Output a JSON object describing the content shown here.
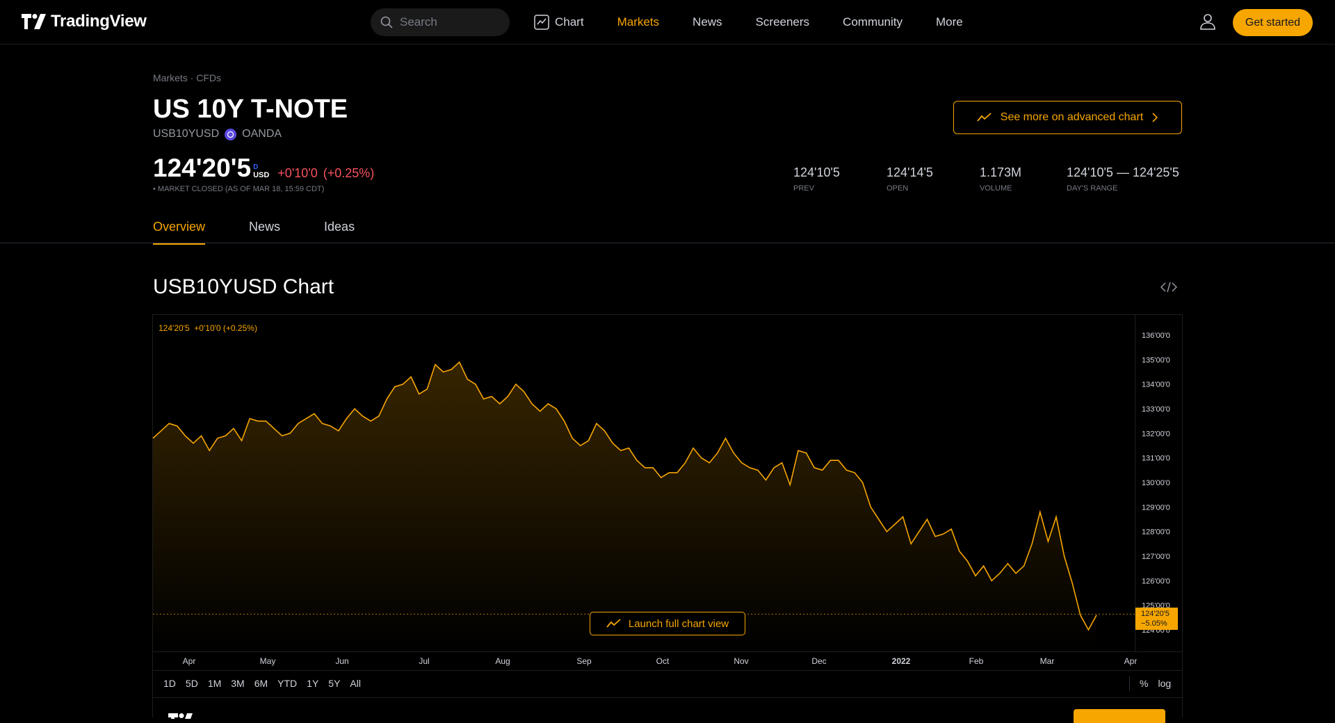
{
  "topbar": {
    "logo_text": "TradingView",
    "search_placeholder": "Search",
    "nav": [
      "Chart",
      "Markets",
      "News",
      "Screeners",
      "Community",
      "More"
    ],
    "active_nav": "Markets",
    "cta": "Get started"
  },
  "symbol": {
    "breadcrumb": "Markets · CFDs",
    "title": "US 10Y T-NOTE",
    "ticker": "USB10YUSD",
    "broker": "OANDA",
    "advanced_chart_label": "See more on advanced chart",
    "price": "124'20'5",
    "price_superscript": "D",
    "currency": "USD",
    "change": "+0'10'0",
    "change_percent": "(+0.25%)",
    "status": "• MARKET CLOSED (AS OF MAR 18, 15:59 CDT)",
    "stats": [
      {
        "value": "124'10'5",
        "label": "PREV"
      },
      {
        "value": "124'14'5",
        "label": "OPEN"
      },
      {
        "value": "1.173M",
        "label": "VOLUME"
      },
      {
        "value": "124'10'5 — 124'25'5",
        "label": "DAY'S RANGE"
      }
    ]
  },
  "tabs": [
    "Overview",
    "News",
    "Ideas"
  ],
  "chart": {
    "title": "USB10YUSD Chart",
    "legend_price": "124'20'5",
    "legend_change": "+0'10'0 (+0.25%)",
    "launch_label": "Launch full chart view",
    "last_price_label": "124'20'5",
    "last_change_label": "−5.05%",
    "ranges": [
      "1D",
      "5D",
      "1M",
      "3M",
      "6M",
      "YTD",
      "1Y",
      "5Y",
      "All"
    ],
    "scale_options": [
      "%",
      "log"
    ],
    "accent_color": "#f7a600"
  },
  "chart_data": {
    "type": "area",
    "series": [
      {
        "values": [
          131.8,
          132.1,
          132.4,
          132.3,
          131.9,
          131.6,
          131.9,
          131.3,
          131.8,
          131.9,
          132.2,
          131.7,
          132.6,
          132.5,
          132.5,
          132.2,
          131.9,
          132.0,
          132.4,
          132.6,
          132.8,
          132.4,
          132.3,
          132.1,
          132.6,
          133.0,
          132.7,
          132.5,
          132.7,
          133.4,
          133.9,
          134.0,
          134.3,
          133.6,
          133.8,
          134.8,
          134.5,
          134.6,
          134.9,
          134.2,
          134.0,
          133.4,
          133.5,
          133.2,
          133.5,
          134.0,
          133.7,
          133.2,
          132.9,
          133.2,
          133.0,
          132.5,
          131.8,
          131.5,
          131.7,
          132.4,
          132.1,
          131.6,
          131.3,
          131.4,
          130.9,
          130.6,
          130.6,
          130.2,
          130.4,
          130.4,
          130.8,
          131.4,
          131.0,
          130.8,
          131.2,
          131.8,
          131.2,
          130.8,
          130.6,
          130.5,
          130.1,
          130.6,
          130.8,
          129.9,
          131.3,
          131.2,
          130.6,
          130.5,
          130.9,
          130.9,
          130.5,
          130.4,
          130.0,
          129.0,
          128.5,
          128.0,
          128.3,
          128.6,
          127.5,
          128.0,
          128.5,
          127.8,
          127.9,
          128.1,
          127.2,
          126.8,
          126.2,
          126.6,
          126.0,
          126.3,
          126.7,
          126.3,
          126.6,
          127.5,
          128.8,
          127.6,
          128.6,
          127.0,
          125.9,
          124.6,
          124.0,
          124.6
        ]
      }
    ],
    "x_ticks": [
      "Apr",
      "May",
      "Jun",
      "Jul",
      "Aug",
      "Sep",
      "Oct",
      "Nov",
      "Dec",
      "2022",
      "Feb",
      "Mar",
      "Apr"
    ],
    "y_ticks": [
      "136'00'0",
      "135'00'0",
      "134'00'0",
      "133'00'0",
      "132'00'0",
      "131'00'0",
      "130'00'0",
      "129'00'0",
      "128'00'0",
      "127'00'0",
      "126'00'0",
      "125'00'0",
      "124'00'0"
    ],
    "ylim": [
      124,
      136
    ],
    "last_value": 124.64,
    "grid": false
  }
}
